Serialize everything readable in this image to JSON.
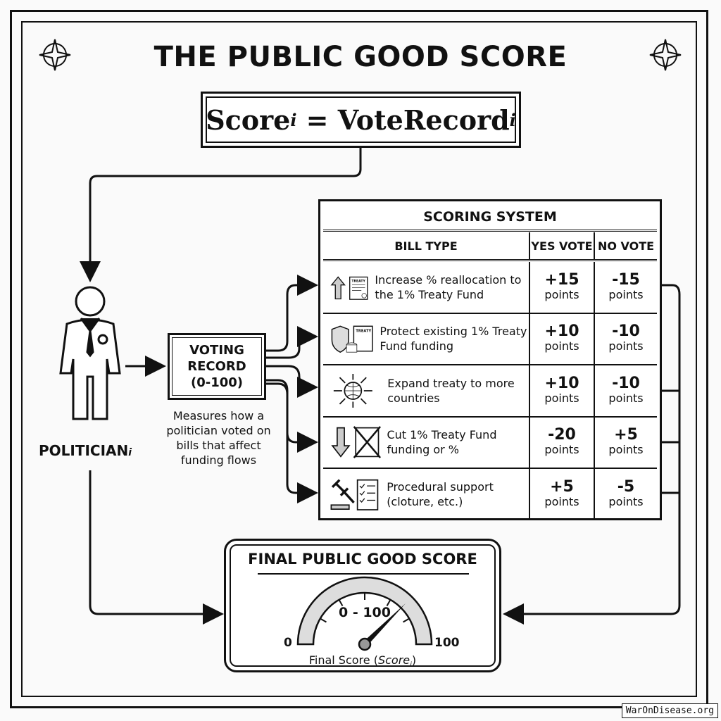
{
  "title": "THE PUBLIC GOOD SCORE",
  "formula": {
    "lhs": "Score",
    "lhs_sub": "i",
    "eq": " = ",
    "rhs": "VoteRecord",
    "rhs_sub": "i"
  },
  "politician": {
    "label": "POLITICIAN",
    "sub": "i",
    "icon": "politician-icon"
  },
  "voting_record": {
    "label": "VOTING RECORD (0-100)",
    "description": "Measures how a politician voted on bills that affect funding flows"
  },
  "scoring_system": {
    "title": "SCORING SYSTEM",
    "headers": [
      "BILL TYPE",
      "YES VOTE",
      "NO VOTE"
    ],
    "unit": "points",
    "rows": [
      {
        "icon": "up-arrow-treaty-icon",
        "bill": "Increase % reallocation to the 1% Treaty Fund",
        "yes": "+15",
        "no": "-15"
      },
      {
        "icon": "shield-coins-treaty-icon",
        "bill": "Protect existing 1% Treaty Fund funding",
        "yes": "+10",
        "no": "-10"
      },
      {
        "icon": "globe-arrows-icon",
        "bill": "Expand treaty to more countries",
        "yes": "+10",
        "no": "-10"
      },
      {
        "icon": "down-arrow-crossed-treaty-icon",
        "bill": "Cut 1% Treaty Fund funding or %",
        "yes": "-20",
        "no": "+5"
      },
      {
        "icon": "gavel-checklist-icon",
        "bill": "Procedural support (cloture, etc.)",
        "yes": "+5",
        "no": "-5"
      }
    ]
  },
  "final": {
    "title": "FINAL PUBLIC GOOD SCORE",
    "range": "0 - 100",
    "min": "0",
    "max": "100",
    "caption": "Final Score (",
    "caption_var": "Score",
    "caption_sub": "i",
    "caption_end": ")",
    "needle_value": 75
  },
  "watermark": "WarOnDisease.org"
}
